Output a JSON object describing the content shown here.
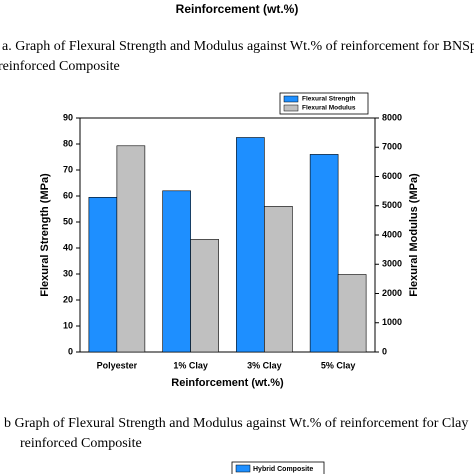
{
  "document": {
    "top_label": "Reinforcement (wt.%)",
    "caption_a": [
      "a. Graph of Flexural Strength and Modulus against Wt.% of reinforcement for BNSp",
      "reinforced Composite"
    ],
    "caption_b": [
      "b Graph of Flexural Strength and Modulus against Wt.% of reinforcement for Clay",
      "reinforced Composite"
    ],
    "bottom_legend": "Hybrid Composite"
  },
  "chart_data": {
    "type": "bar",
    "categories": [
      "Polyester",
      "1% Clay",
      "3% Clay",
      "5% Clay"
    ],
    "series": [
      {
        "name": "Flexural Strength",
        "color": "#1e8fff",
        "values": [
          59.5,
          62,
          82.5,
          76
        ]
      },
      {
        "name": "Flexural Modulus",
        "color": "#c0c0c0",
        "values": [
          7050,
          3850,
          4980,
          2650
        ],
        "axis": "y2"
      }
    ],
    "x_label": "Reinforcement (wt.%)",
    "y_label": "Flexural Strength (MPa)",
    "y2_label": "Flexural Modulus (MPa)",
    "ylim": [
      0,
      90
    ],
    "yticks": [
      0,
      10,
      20,
      30,
      40,
      50,
      60,
      70,
      80,
      90
    ],
    "y2lim": [
      0,
      8000
    ],
    "y2ticks": [
      0,
      1000,
      2000,
      3000,
      4000,
      5000,
      6000,
      7000,
      8000
    ],
    "legend": "top-right"
  }
}
